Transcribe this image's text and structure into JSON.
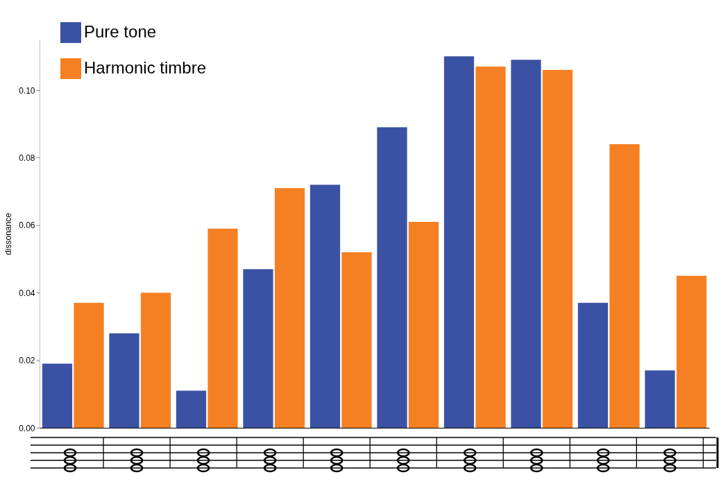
{
  "chart_data": {
    "type": "bar",
    "ylabel": "dissonance",
    "categories": [
      null,
      null,
      null,
      null,
      null,
      null,
      null,
      null,
      null,
      null
    ],
    "series": [
      {
        "name": "Pure tone",
        "color": "#3b52a4",
        "values": [
          0.019,
          0.028,
          0.011,
          0.047,
          0.072,
          0.089,
          0.11,
          0.109,
          0.037,
          0.017
        ]
      },
      {
        "name": "Harmonic timbre",
        "color": "#f58023",
        "values": [
          0.037,
          0.04,
          0.059,
          0.071,
          0.052,
          0.061,
          0.107,
          0.106,
          0.084,
          0.045
        ]
      }
    ],
    "ylim": [
      0,
      0.115
    ],
    "yticks": [
      {
        "value": 0,
        "label": "0.00"
      },
      {
        "value": 0.02,
        "label": "0.02"
      },
      {
        "value": 0.04,
        "label": "0.04"
      },
      {
        "value": 0.06,
        "label": "0.06"
      },
      {
        "value": 0.08,
        "label": "0.08"
      },
      {
        "value": 0.1,
        "label": "0.10"
      }
    ],
    "grid": false,
    "legend": "top left"
  }
}
